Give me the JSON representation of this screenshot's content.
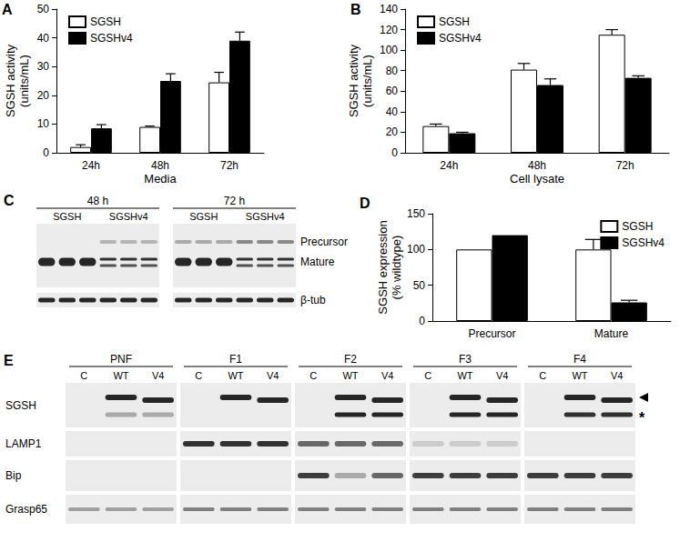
{
  "chart_data": [
    {
      "title": "A",
      "type": "bar",
      "categories": [
        "24h",
        "48h",
        "72h"
      ],
      "xlabel": "Media",
      "ylabel": "SGSH activity\n(units/mL)",
      "ylim": [
        0,
        50
      ],
      "yticks": [
        0,
        10,
        20,
        30,
        40,
        50
      ],
      "legend": "upper left",
      "grid": false,
      "series": [
        {
          "name": "SGSH",
          "color": "#ffffff",
          "values": [
            2,
            9,
            24.5
          ],
          "errors": [
            0.8,
            0.3,
            3.5
          ]
        },
        {
          "name": "SGSHv4",
          "color": "#000000",
          "values": [
            8.5,
            25,
            39
          ],
          "errors": [
            1.3,
            2.5,
            3
          ]
        }
      ]
    },
    {
      "title": "B",
      "type": "bar",
      "categories": [
        "24h",
        "48h",
        "72h"
      ],
      "xlabel": "Cell lysate",
      "ylabel": "SGSH activity\n(units/mL)",
      "ylim": [
        0,
        140
      ],
      "yticks": [
        0,
        20,
        40,
        60,
        80,
        100,
        120,
        140
      ],
      "legend": "upper left",
      "grid": false,
      "series": [
        {
          "name": "SGSH",
          "color": "#ffffff",
          "values": [
            26,
            81,
            115
          ],
          "errors": [
            2,
            6,
            5
          ]
        },
        {
          "name": "SGSHv4",
          "color": "#000000",
          "values": [
            19,
            66,
            73
          ],
          "errors": [
            1,
            6,
            2
          ]
        }
      ]
    },
    {
      "title": "D",
      "type": "bar",
      "categories": [
        "Precursor",
        "Mature"
      ],
      "ylabel": "SGSH expression\n(% wildtype)",
      "ylim": [
        0,
        150
      ],
      "yticks": [
        0,
        50,
        100,
        150
      ],
      "legend": "upper right",
      "grid": false,
      "series": [
        {
          "name": "SGSH",
          "color": "#ffffff",
          "values": [
            100,
            100
          ],
          "errors": [
            null,
            14
          ]
        },
        {
          "name": "SGSHv4",
          "color": "#000000",
          "values": [
            120,
            26
          ],
          "errors": [
            null,
            3
          ]
        }
      ]
    }
  ],
  "blots": [
    {
      "title": "C",
      "groups": [
        {
          "label": "48 h",
          "subgroups": [
            "SGSH",
            "SGSHv4"
          ]
        },
        {
          "label": "72 h",
          "subgroups": [
            "SGSH",
            "SGSHv4"
          ]
        }
      ],
      "band_labels": [
        "Precursor",
        "Mature"
      ],
      "loading_control": "β-tub"
    },
    {
      "title": "E",
      "groups": [
        "PNF",
        "F1",
        "F2",
        "F3",
        "F4"
      ],
      "lanes": [
        "C",
        "WT",
        "V4"
      ],
      "rows": [
        "SGSH",
        "LAMP1",
        "Bip",
        "Grasp65"
      ],
      "band_mark": "*"
    }
  ]
}
